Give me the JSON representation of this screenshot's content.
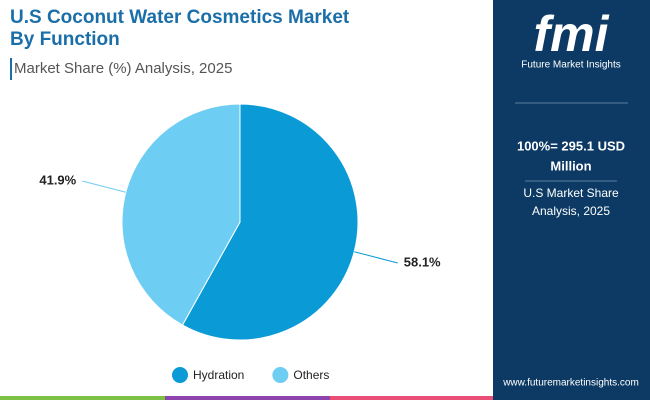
{
  "chart_data": {
    "type": "pie",
    "title": "U.S Coconut Water Cosmetics Market",
    "title_line2": "By Function",
    "subtitle": "Market Share (%) Analysis, 2025",
    "categories": [
      "Hydration",
      "Others"
    ],
    "values": [
      58.1,
      41.9
    ],
    "value_labels": [
      "58.1%",
      "41.9%"
    ],
    "colors": [
      "#0a9bd6",
      "#6dcdf2"
    ],
    "legend": "bottom"
  },
  "side_panel": {
    "logo": "fmi",
    "brand": "Future Market Insights",
    "total": "100%= 295.1 USD",
    "total_line2": "Million",
    "note": "U.S Market Share",
    "note_line2": "Analysis, 2025",
    "website": "www.futuremarketinsights.com"
  }
}
